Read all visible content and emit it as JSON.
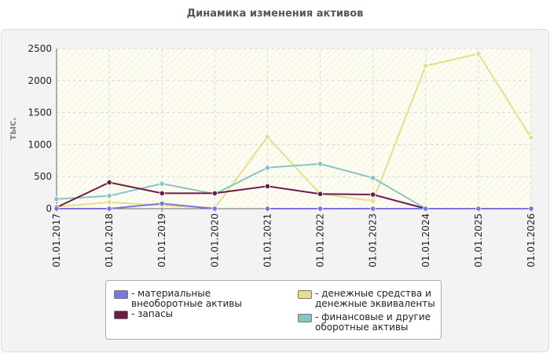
{
  "chart_data": {
    "type": "line",
    "title": "Динамика изменения активов",
    "ylabel": "тыс.",
    "xlabel": "",
    "categories": [
      "01.01.2017",
      "01.01.2018",
      "01.01.2019",
      "01.01.2020",
      "01.01.2021",
      "01.01.2022",
      "01.01.2023",
      "01.01.2024",
      "01.01.2025",
      "01.01.2026"
    ],
    "ylim": [
      0,
      2500
    ],
    "yticks": [
      0,
      500,
      1000,
      1500,
      2000,
      2500
    ],
    "grid": true,
    "legend_position": "bottom",
    "series": [
      {
        "name": "- материальные внеоборотные активы",
        "color": "#7777dd",
        "values": [
          0,
          0,
          80,
          0,
          null,
          null,
          null,
          null,
          null,
          null
        ],
        "values_flat": [
          null,
          null,
          null,
          null,
          0,
          0,
          0,
          0,
          0,
          0
        ]
      },
      {
        "name": "- запасы",
        "color": "#6e1a4a",
        "values": [
          20,
          410,
          240,
          240,
          350,
          230,
          220,
          0,
          null,
          null
        ]
      },
      {
        "name": "- денежные средства и денежные эквиваленты",
        "color": "#e4e08a",
        "values": [
          30,
          100,
          50,
          10,
          1120,
          230,
          120,
          2230,
          2420,
          1110
        ]
      },
      {
        "name": "- финансовые и другие оборотные активы",
        "color": "#88c4c4",
        "values": [
          150,
          200,
          390,
          230,
          640,
          700,
          480,
          0,
          0,
          0
        ]
      }
    ]
  }
}
